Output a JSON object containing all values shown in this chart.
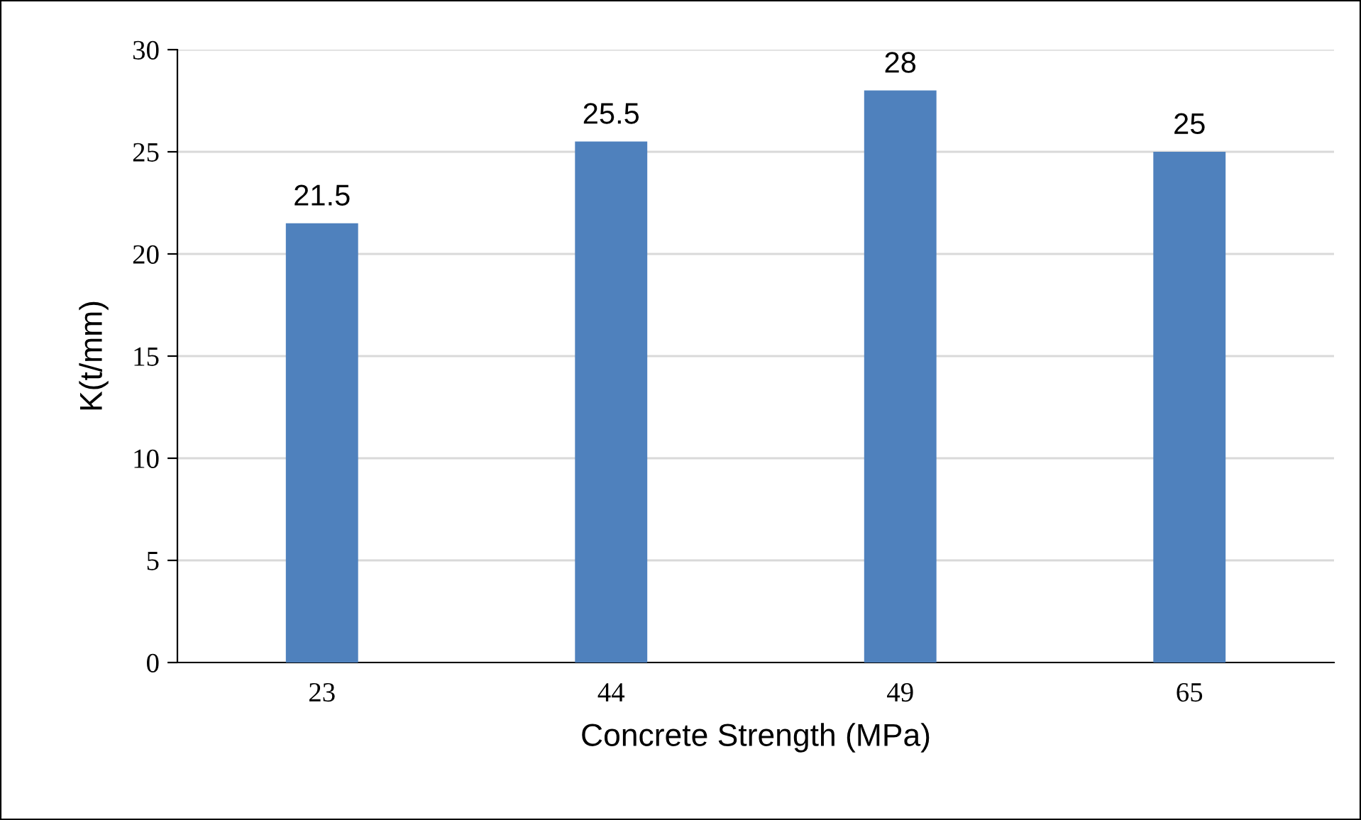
{
  "chart_data": {
    "type": "bar",
    "xlabel": "Concrete Strength (MPa)",
    "ylabel": "K(t/mm)",
    "categories": [
      "23",
      "44",
      "49",
      "65"
    ],
    "values": [
      21.5,
      25.5,
      28,
      25
    ],
    "color": "#4f81bd",
    "ylim": [
      0,
      30
    ],
    "yticks": [
      0,
      5,
      10,
      15,
      20,
      25,
      30
    ],
    "grid": "y",
    "data_labels": true
  }
}
